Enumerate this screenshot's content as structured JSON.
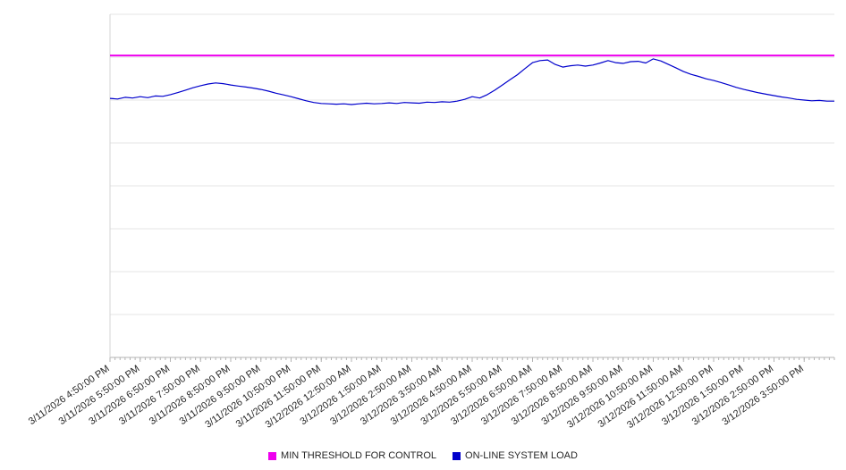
{
  "chart_data": {
    "type": "line",
    "title": "",
    "xlabel": "",
    "ylabel": "",
    "ylim": [
      0,
      100
    ],
    "grid": "horizontal",
    "legend_position": "bottom",
    "categories": [
      "3/11/2026 4:50:00 PM",
      "3/11/2026 5:50:00 PM",
      "3/11/2026 6:50:00 PM",
      "3/11/2026 7:50:00 PM",
      "3/11/2026 8:50:00 PM",
      "3/11/2026 9:50:00 PM",
      "3/11/2026 10:50:00 PM",
      "3/11/2026 11:50:00 PM",
      "3/12/2026 12:50:00 AM",
      "3/12/2026 1:50:00 AM",
      "3/12/2026 2:50:00 AM",
      "3/12/2026 3:50:00 AM",
      "3/12/2026 4:50:00 AM",
      "3/12/2026 5:50:00 AM",
      "3/12/2026 6:50:00 AM",
      "3/12/2026 7:50:00 AM",
      "3/12/2026 8:50:00 AM",
      "3/12/2026 9:50:00 AM",
      "3/12/2026 10:50:00 AM",
      "3/12/2026 11:50:00 AM",
      "3/12/2026 12:50:00 PM",
      "3/12/2026 1:50:00 PM",
      "3/12/2026 2:50:00 PM",
      "3/12/2026 3:50:00 PM"
    ],
    "series": [
      {
        "name": "MIN THRESHOLD FOR CONTROL",
        "type": "constant",
        "color": "#ee00ee",
        "value": 88
      },
      {
        "name": "ON-LINE SYSTEM LOAD",
        "type": "line",
        "color": "#0000cc",
        "x_step_hours": 0.25,
        "values": [
          75.5,
          75.3,
          75.8,
          75.6,
          76.0,
          75.7,
          76.2,
          76.1,
          76.6,
          77.2,
          77.9,
          78.6,
          79.2,
          79.7,
          80.0,
          79.8,
          79.4,
          79.1,
          78.8,
          78.5,
          78.1,
          77.6,
          77.0,
          76.5,
          76.0,
          75.4,
          74.8,
          74.3,
          74.0,
          73.9,
          73.8,
          73.9,
          73.7,
          73.9,
          74.1,
          73.9,
          74.0,
          74.2,
          74.0,
          74.3,
          74.2,
          74.1,
          74.4,
          74.3,
          74.5,
          74.4,
          74.7,
          75.2,
          76.0,
          75.6,
          76.6,
          77.9,
          79.4,
          80.9,
          82.4,
          84.2,
          85.9,
          86.5,
          86.7,
          85.4,
          84.6,
          85.0,
          85.2,
          84.9,
          85.2,
          85.8,
          86.5,
          85.9,
          85.7,
          86.2,
          86.3,
          85.8,
          87.0,
          86.4,
          85.4,
          84.4,
          83.3,
          82.5,
          81.9,
          81.2,
          80.7,
          80.1,
          79.4,
          78.7,
          78.1,
          77.6,
          77.1,
          76.7,
          76.3,
          75.9,
          75.6,
          75.2,
          75.0,
          74.8,
          74.9,
          74.7,
          74.7
        ]
      }
    ]
  }
}
